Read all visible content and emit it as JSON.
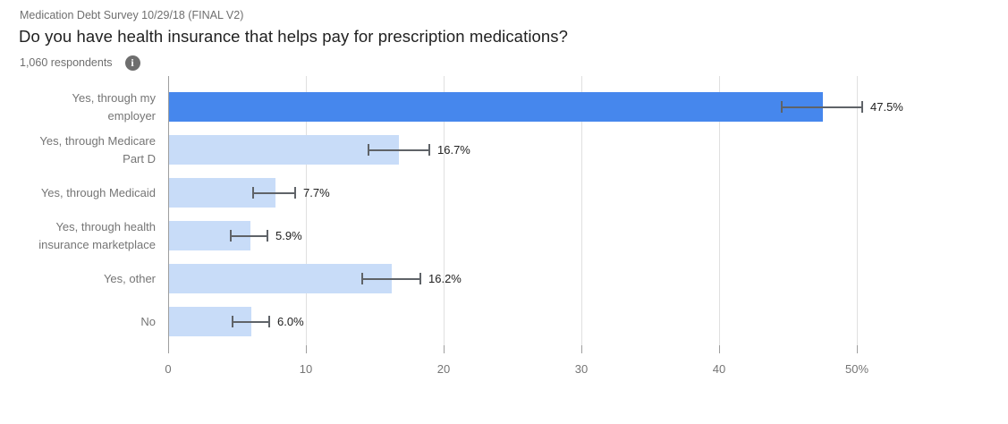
{
  "header": {
    "survey_name": "Medication Debt Survey 10/29/18 (FINAL V2)",
    "title": "Do you have health insurance that helps pay for prescription medications?",
    "respondents": "1,060 respondents",
    "info_icon_glyph": "i"
  },
  "colors": {
    "bar_highlight": "#4687ed",
    "bar_default": "#c8dcf8",
    "gridline": "#e0e0e0",
    "axis_line": "#9e9e9e",
    "tick_mark": "#9e9e9e",
    "error_bar": "#5f6368",
    "label_gray": "#757575",
    "value_text": "#212121"
  },
  "chart_data": {
    "type": "bar",
    "orientation": "horizontal",
    "title": "Do you have health insurance that helps pay for prescription medications?",
    "subtitle": "1,060 respondents",
    "categories": [
      "Yes, through my\nemployer",
      "Yes, through Medicare\nPart D",
      "Yes, through Medicaid",
      "Yes, through health\ninsurance marketplace",
      "Yes, other",
      "No"
    ],
    "values": [
      47.5,
      16.7,
      7.7,
      5.9,
      16.2,
      6.0
    ],
    "value_labels": [
      "47.5%",
      "16.7%",
      "7.7%",
      "5.9%",
      "16.2%",
      "6.0%"
    ],
    "error_low": [
      44.5,
      14.5,
      6.1,
      4.5,
      14.0,
      4.6
    ],
    "error_high": [
      50.5,
      19.0,
      9.3,
      7.3,
      18.4,
      7.4
    ],
    "highlighted_index": 0,
    "xlabel": "",
    "ylabel": "",
    "xlim": [
      0,
      59.5
    ],
    "x_ticks": [
      0,
      10,
      20,
      30,
      40,
      50
    ],
    "x_tick_labels": [
      "0",
      "10",
      "20",
      "30",
      "40",
      "50%"
    ],
    "grid": true,
    "legend": false
  }
}
